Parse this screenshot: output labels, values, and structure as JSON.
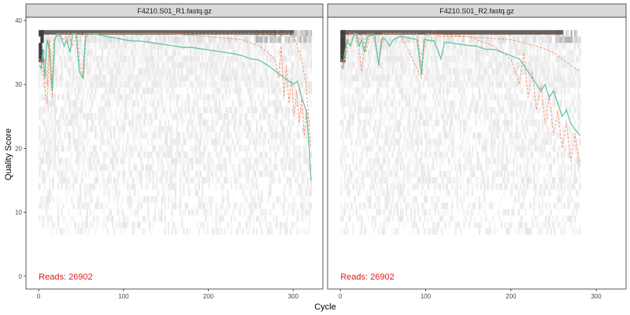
{
  "chart_data": {
    "type": "line",
    "ylabel": "Quality Score",
    "xlabel": "Cycle",
    "xlim": [
      -15,
      335
    ],
    "ylim": [
      -2,
      40.5
    ],
    "x_ticks": [
      0,
      100,
      200,
      300
    ],
    "y_ticks": [
      0,
      10,
      20,
      30,
      40
    ],
    "grid": false,
    "colors": {
      "mean": "#66c2a5",
      "quantile": "#fc8d62",
      "reads": "#e31a1c",
      "strip": "#d9d9d9",
      "panel_border": "#333333"
    },
    "panels": [
      {
        "title": "F4210.S01_R1.fastq.gz",
        "reads_label": "Reads:  26902",
        "max_cycle": 321,
        "mean_quality": [
          [
            1,
            33
          ],
          [
            3,
            32.5
          ],
          [
            5,
            35.5
          ],
          [
            7,
            31
          ],
          [
            10,
            37
          ],
          [
            13,
            35
          ],
          [
            16,
            29
          ],
          [
            19,
            37
          ],
          [
            22,
            38
          ],
          [
            26,
            37.5
          ],
          [
            30,
            36
          ],
          [
            33,
            37
          ],
          [
            37,
            35
          ],
          [
            40,
            38
          ],
          [
            44,
            37.8
          ],
          [
            48,
            32
          ],
          [
            52,
            31
          ],
          [
            55,
            37.5
          ],
          [
            60,
            38
          ],
          [
            70,
            37.8
          ],
          [
            80,
            37.5
          ],
          [
            90,
            37.3
          ],
          [
            100,
            37
          ],
          [
            110,
            36.8
          ],
          [
            120,
            36.8
          ],
          [
            130,
            36.6
          ],
          [
            140,
            36.4
          ],
          [
            150,
            36.2
          ],
          [
            160,
            36
          ],
          [
            170,
            35.8
          ],
          [
            180,
            35.8
          ],
          [
            190,
            35.6
          ],
          [
            200,
            35.4
          ],
          [
            210,
            35.2
          ],
          [
            220,
            35
          ],
          [
            230,
            34.8
          ],
          [
            240,
            34.5
          ],
          [
            250,
            34
          ],
          [
            260,
            33.8
          ],
          [
            270,
            33
          ],
          [
            275,
            32.5
          ],
          [
            280,
            32
          ],
          [
            285,
            31.5
          ],
          [
            290,
            31
          ],
          [
            295,
            30.5
          ],
          [
            300,
            30
          ],
          [
            305,
            30.5
          ],
          [
            310,
            28
          ],
          [
            315,
            26
          ],
          [
            318,
            22
          ],
          [
            321,
            15
          ]
        ],
        "q25_quality": [
          [
            1,
            34
          ],
          [
            4,
            33
          ],
          [
            7,
            34
          ],
          [
            10,
            30
          ],
          [
            12,
            37
          ],
          [
            15,
            29
          ],
          [
            18,
            37
          ],
          [
            22,
            38
          ],
          [
            30,
            37
          ],
          [
            35,
            38
          ],
          [
            40,
            36
          ],
          [
            45,
            38
          ],
          [
            50,
            32
          ],
          [
            53,
            31
          ],
          [
            56,
            38
          ],
          [
            70,
            38
          ],
          [
            100,
            38
          ],
          [
            150,
            38
          ],
          [
            200,
            37.5
          ],
          [
            240,
            37
          ],
          [
            260,
            36
          ],
          [
            270,
            35
          ],
          [
            278,
            34
          ],
          [
            283,
            31
          ],
          [
            286,
            36
          ],
          [
            289,
            28
          ],
          [
            292,
            33
          ],
          [
            295,
            27
          ],
          [
            298,
            31
          ],
          [
            301,
            25
          ],
          [
            304,
            29
          ],
          [
            307,
            24
          ],
          [
            310,
            28
          ],
          [
            313,
            22
          ],
          [
            316,
            26
          ],
          [
            319,
            20
          ],
          [
            321,
            15
          ]
        ],
        "q75_quality": [
          [
            1,
            34
          ],
          [
            4,
            33
          ],
          [
            7,
            30
          ],
          [
            10,
            27
          ],
          [
            13,
            37
          ],
          [
            16,
            28
          ],
          [
            19,
            37
          ],
          [
            25,
            38
          ],
          [
            300,
            38
          ],
          [
            305,
            36
          ],
          [
            310,
            34
          ],
          [
            315,
            30
          ],
          [
            318,
            25
          ],
          [
            321,
            20
          ]
        ]
      },
      {
        "title": "F4210.S01_R2.fastq.gz",
        "reads_label": "Reads:  26902",
        "max_cycle": 281,
        "mean_quality": [
          [
            1,
            33
          ],
          [
            3,
            32.5
          ],
          [
            5,
            35
          ],
          [
            8,
            37
          ],
          [
            12,
            36
          ],
          [
            15,
            37.5
          ],
          [
            18,
            38
          ],
          [
            22,
            36
          ],
          [
            25,
            37
          ],
          [
            28,
            35
          ],
          [
            32,
            37.5
          ],
          [
            40,
            37.8
          ],
          [
            45,
            33
          ],
          [
            48,
            37
          ],
          [
            52,
            37.2
          ],
          [
            58,
            36
          ],
          [
            62,
            37
          ],
          [
            70,
            37.5
          ],
          [
            80,
            37.3
          ],
          [
            90,
            37
          ],
          [
            95,
            31.5
          ],
          [
            98,
            37
          ],
          [
            110,
            36.8
          ],
          [
            118,
            34
          ],
          [
            122,
            36.6
          ],
          [
            130,
            36.5
          ],
          [
            140,
            36.3
          ],
          [
            150,
            36.1
          ],
          [
            160,
            36
          ],
          [
            170,
            35.5
          ],
          [
            180,
            35.5
          ],
          [
            190,
            35
          ],
          [
            200,
            34.5
          ],
          [
            210,
            34
          ],
          [
            215,
            33
          ],
          [
            220,
            32
          ],
          [
            225,
            31
          ],
          [
            230,
            30
          ],
          [
            235,
            29
          ],
          [
            240,
            30
          ],
          [
            245,
            28
          ],
          [
            250,
            29
          ],
          [
            255,
            27
          ],
          [
            260,
            25
          ],
          [
            265,
            26
          ],
          [
            270,
            24
          ],
          [
            275,
            23
          ],
          [
            281,
            22
          ]
        ],
        "q25_quality": [
          [
            1,
            34
          ],
          [
            4,
            33
          ],
          [
            7,
            36
          ],
          [
            10,
            38
          ],
          [
            20,
            38
          ],
          [
            25,
            32
          ],
          [
            30,
            38
          ],
          [
            40,
            38
          ],
          [
            45,
            33
          ],
          [
            50,
            38
          ],
          [
            60,
            38
          ],
          [
            70,
            38
          ],
          [
            95,
            31
          ],
          [
            100,
            38
          ],
          [
            120,
            37.5
          ],
          [
            150,
            37.5
          ],
          [
            180,
            36
          ],
          [
            200,
            34
          ],
          [
            210,
            30
          ],
          [
            215,
            35
          ],
          [
            220,
            28
          ],
          [
            225,
            32
          ],
          [
            230,
            26
          ],
          [
            235,
            30
          ],
          [
            240,
            24
          ],
          [
            245,
            28
          ],
          [
            250,
            22
          ],
          [
            255,
            26
          ],
          [
            260,
            20
          ],
          [
            265,
            24
          ],
          [
            270,
            18
          ],
          [
            275,
            22
          ],
          [
            281,
            17
          ]
        ],
        "q75_quality": [
          [
            1,
            34
          ],
          [
            4,
            33
          ],
          [
            7,
            35
          ],
          [
            10,
            38
          ],
          [
            15,
            38
          ],
          [
            20,
            36
          ],
          [
            25,
            38
          ],
          [
            30,
            35
          ],
          [
            35,
            38
          ],
          [
            40,
            37
          ],
          [
            45,
            33
          ],
          [
            50,
            38
          ],
          [
            90,
            38
          ],
          [
            95,
            33
          ],
          [
            100,
            38
          ],
          [
            200,
            37
          ],
          [
            230,
            36
          ],
          [
            250,
            35
          ],
          [
            260,
            34
          ],
          [
            270,
            33
          ],
          [
            281,
            32
          ]
        ]
      }
    ]
  }
}
